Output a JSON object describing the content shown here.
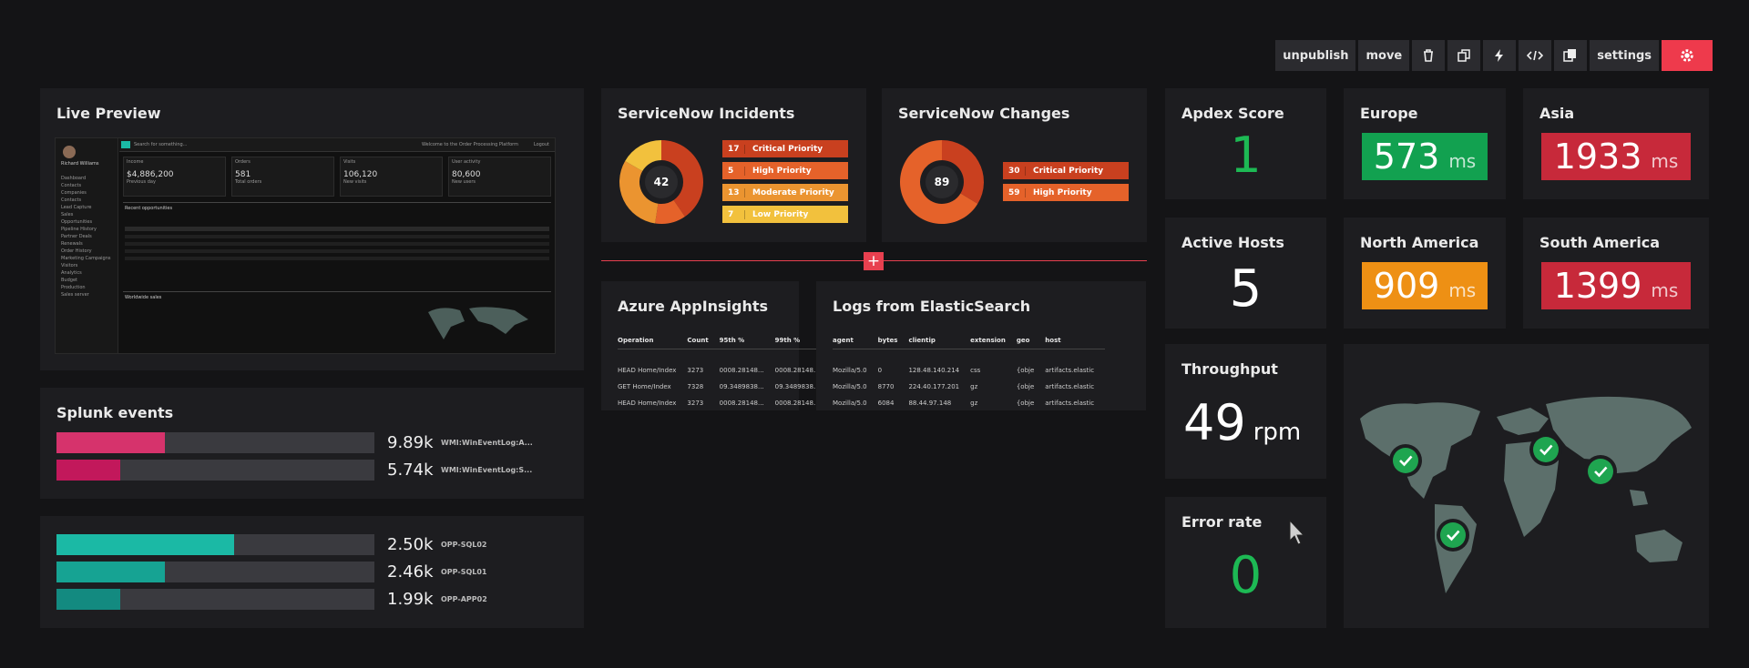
{
  "toolbar": {
    "unpublish": "unpublish",
    "move": "move",
    "settings": "settings",
    "icons": [
      "trash-icon",
      "copy-icon",
      "bolt-icon",
      "code-icon",
      "duplicate-icon",
      "gear-icon"
    ],
    "accent": "#ee3a4c"
  },
  "live_preview": {
    "title": "Live Preview",
    "user": "Richard Williams",
    "search": "Search for something...",
    "welcome": "Welcome to the Order Processing Platform",
    "logout": "Logout",
    "nav": [
      "Dashboard",
      "Contacts",
      "Companies",
      "Contacts",
      "Lead Capture",
      "Sales",
      "Opportunities",
      "Pipeline History",
      "Partner Deals",
      "Renewals",
      "Order History",
      "Marketing Campaigns",
      "Visitors",
      "Analytics",
      "Budget",
      "Production",
      "Sales server"
    ],
    "kpis": [
      {
        "label": "Income",
        "value": "$4,886,200",
        "sub": "Previous day"
      },
      {
        "label": "Orders",
        "value": "581",
        "sub": "Total orders"
      },
      {
        "label": "Visits",
        "value": "106,120",
        "sub": "New visits"
      },
      {
        "label": "User activity",
        "value": "80,600",
        "sub": "New users"
      }
    ],
    "section1": "Recent opportunities",
    "section2": "Worldwide sales"
  },
  "splunk": {
    "title": "Splunk events",
    "rows": [
      {
        "value": "9.89k",
        "label": "WMI:WinEventLog:A...",
        "fraction": 0.34,
        "color": "#d6336c"
      },
      {
        "value": "5.74k",
        "label": "WMI:WinEventLog:S...",
        "fraction": 0.2,
        "color": "#c2185b"
      }
    ]
  },
  "opp": {
    "rows": [
      {
        "value": "2.50k",
        "label": "OPP-SQL02",
        "fraction": 0.56,
        "color": "#1bb9a5"
      },
      {
        "value": "2.46k",
        "label": "OPP-SQL01",
        "fraction": 0.34,
        "color": "#16a393"
      },
      {
        "value": "1.99k",
        "label": "OPP-APP02",
        "fraction": 0.2,
        "color": "#138a80"
      }
    ]
  },
  "incidents": {
    "title": "ServiceNow Incidents",
    "total": "42",
    "rows": [
      {
        "n": "17",
        "label": "Critical Priority",
        "color": "#c9401f"
      },
      {
        "n": "5",
        "label": "High Priority",
        "color": "#e5622a"
      },
      {
        "n": "13",
        "label": "Moderate Priority",
        "color": "#eb9430"
      },
      {
        "n": "7",
        "label": "Low Priority",
        "color": "#f2c13d"
      }
    ]
  },
  "changes": {
    "title": "ServiceNow Changes",
    "total": "89",
    "rows": [
      {
        "n": "30",
        "label": "Critical Priority",
        "color": "#c9401f"
      },
      {
        "n": "59",
        "label": "High Priority",
        "color": "#e5622a"
      }
    ]
  },
  "appinsights": {
    "title": "Azure AppInsights",
    "headers": [
      "Operation",
      "Count",
      "95th %",
      "99th %"
    ],
    "rows": [
      [
        "HEAD Home/Index",
        "3273",
        "0008.28148...",
        "0008.28148..."
      ],
      [
        "GET Home/Index",
        "7328",
        "09.3489838...",
        "09.3489838..."
      ],
      [
        "HEAD Home/Index",
        "3273",
        "0008.28148...",
        "0008.28148..."
      ]
    ]
  },
  "elastic": {
    "title": "Logs from ElasticSearch",
    "headers": [
      "agent",
      "bytes",
      "clientip",
      "extension",
      "geo",
      "host"
    ],
    "rows": [
      [
        "Mozilla/5.0",
        "0",
        "128.48.140.214",
        "css",
        "{obje",
        "artifacts.elastic"
      ],
      [
        "Mozilla/5.0",
        "8770",
        "224.40.177.201",
        "gz",
        "{obje",
        "artifacts.elastic"
      ],
      [
        "Mozilla/5.0",
        "6084",
        "88.44.97.148",
        "gz",
        "{obje",
        "artifacts.elastic"
      ]
    ]
  },
  "apdex": {
    "title": "Apdex Score",
    "value": "1",
    "color": "#1db954"
  },
  "hosts": {
    "title": "Active Hosts",
    "value": "5"
  },
  "throughput": {
    "title": "Throughput",
    "value": "49",
    "unit": "rpm"
  },
  "errors": {
    "title": "Error rate",
    "value": "0",
    "color": "#1db954"
  },
  "regions": [
    {
      "name": "Europe",
      "value": "573",
      "unit": "ms",
      "color": "#12a150"
    },
    {
      "name": "Asia",
      "value": "1933",
      "unit": "ms",
      "color": "#c7293a"
    },
    {
      "name": "North America",
      "value": "909",
      "unit": "ms",
      "color": "#ee9014"
    },
    {
      "name": "South America",
      "value": "1399",
      "unit": "ms",
      "color": "#c7293a"
    }
  ],
  "map": {
    "land_color": "#5c6f6b",
    "markers": [
      "check-icon",
      "check-icon",
      "check-icon",
      "check-icon"
    ],
    "marker_color": "#1fa550"
  }
}
